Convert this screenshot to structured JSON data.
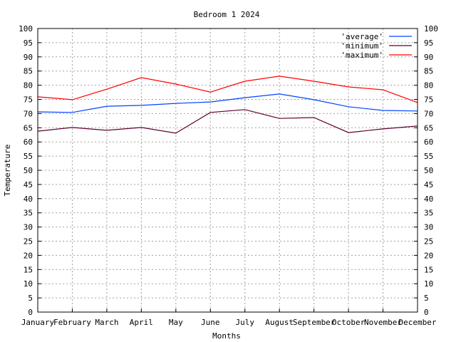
{
  "chart_data": {
    "type": "line",
    "title": "Bedroom 1 2024",
    "xlabel": "Months",
    "ylabel": "Temperature",
    "ylim": [
      0,
      100
    ],
    "ytick_step": 5,
    "grid": true,
    "legend_position": "top-right",
    "categories": [
      "January",
      "February",
      "March",
      "April",
      "May",
      "June",
      "July",
      "August",
      "September",
      "October",
      "November",
      "December"
    ],
    "series": [
      {
        "name": "'average'",
        "color": "#0044ff",
        "values": [
          70.6,
          70.4,
          72.6,
          72.9,
          73.6,
          74.1,
          75.6,
          76.9,
          74.9,
          72.4,
          71.1,
          70.9
        ]
      },
      {
        "name": "'minimum'",
        "color": "#600030",
        "values": [
          63.8,
          65.1,
          64.1,
          65.1,
          63.1,
          70.4,
          71.4,
          68.3,
          68.6,
          63.3,
          64.6,
          65.6
        ]
      },
      {
        "name": "'maximum'",
        "color": "#ff0000",
        "values": [
          75.9,
          74.9,
          78.6,
          82.7,
          80.4,
          77.6,
          81.4,
          83.2,
          81.4,
          79.4,
          78.4,
          73.9
        ]
      }
    ]
  }
}
